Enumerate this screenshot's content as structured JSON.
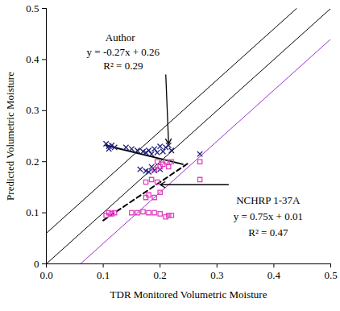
{
  "chart_data": {
    "type": "scatter",
    "x_label": "TDR Monitored Volumetric Moisture",
    "y_label": "Predicted Volumetric Moisture",
    "xlim": [
      0,
      0.5
    ],
    "ylim": [
      0,
      0.5
    ],
    "xticks": [
      {
        "value": 0,
        "label": "0.0"
      },
      0.1,
      0.2,
      0.3,
      0.4,
      0.5
    ],
    "yticks": [
      0,
      0.1,
      0.2,
      0.3,
      0.4,
      0.5
    ],
    "grid": false,
    "series": [
      {
        "name": "Author",
        "type": "scatter",
        "marker": "x",
        "color": "#1f1f7a",
        "x": [
          0.105,
          0.11,
          0.115,
          0.12,
          0.11,
          0.14,
          0.15,
          0.16,
          0.17,
          0.175,
          0.18,
          0.185,
          0.19,
          0.2,
          0.205,
          0.21,
          0.215,
          0.22,
          0.195,
          0.165,
          0.175,
          0.18,
          0.19,
          0.2,
          0.185,
          0.27
        ],
        "values": [
          0.235,
          0.23,
          0.232,
          0.228,
          0.225,
          0.228,
          0.225,
          0.222,
          0.22,
          0.218,
          0.222,
          0.215,
          0.225,
          0.23,
          0.22,
          0.228,
          0.232,
          0.222,
          0.218,
          0.185,
          0.182,
          0.18,
          0.183,
          0.185,
          0.19,
          0.215
        ]
      },
      {
        "name": "NCHRP 1-37A",
        "type": "scatter",
        "marker": "square",
        "color": "#e040c0",
        "x": [
          0.105,
          0.11,
          0.115,
          0.12,
          0.15,
          0.16,
          0.17,
          0.18,
          0.19,
          0.2,
          0.21,
          0.215,
          0.22,
          0.175,
          0.18,
          0.19,
          0.2,
          0.175,
          0.185,
          0.195,
          0.19,
          0.2,
          0.205,
          0.21,
          0.215,
          0.22,
          0.195,
          0.27,
          0.27
        ],
        "values": [
          0.095,
          0.1,
          0.098,
          0.1,
          0.1,
          0.1,
          0.102,
          0.1,
          0.1,
          0.098,
          0.092,
          0.095,
          0.095,
          0.13,
          0.135,
          0.13,
          0.14,
          0.16,
          0.165,
          0.16,
          0.185,
          0.19,
          0.195,
          0.2,
          0.19,
          0.2,
          0.2,
          0.165,
          0.2
        ]
      },
      {
        "type": "line",
        "line_style": "solid",
        "color": "#000000",
        "x": [
          0,
          0.44
        ],
        "values": [
          0.06,
          0.5
        ]
      },
      {
        "type": "line",
        "line_style": "solid",
        "color": "#000000",
        "x": [
          0,
          0.5
        ],
        "values": [
          0,
          0.5
        ]
      },
      {
        "type": "line",
        "line_style": "solid",
        "color": "#9933cc",
        "x": [
          0.06,
          0.5
        ],
        "values": [
          0,
          0.44
        ]
      },
      {
        "type": "line",
        "line_style": "solid",
        "color": "#000000",
        "x": [
          0.105,
          0.24
        ],
        "values": [
          0.232,
          0.195
        ]
      },
      {
        "type": "line",
        "line_style": "dashed",
        "color": "#000000",
        "x": [
          0.1,
          0.25
        ],
        "values": [
          0.085,
          0.1975
        ]
      }
    ],
    "annotations": [
      {
        "text": "Author",
        "x": 0.13,
        "y": 0.442
      },
      {
        "text": "y = -0.27x + 0.26",
        "x": 0.135,
        "y": 0.415
      },
      {
        "text": "R² = 0.29",
        "x": 0.135,
        "y": 0.387
      },
      {
        "text": "NCHRP 1-37A",
        "x": 0.39,
        "y": 0.124
      },
      {
        "text": "y = 0.75x + 0.01",
        "x": 0.39,
        "y": 0.092
      },
      {
        "text": "R² = 0.47",
        "x": 0.39,
        "y": 0.061
      }
    ],
    "arrows": [
      {
        "x1": 0.21,
        "y1": 0.37,
        "x2": 0.215,
        "y2": 0.235
      },
      {
        "x1": 0.32,
        "y1": 0.155,
        "x2": 0.2,
        "y2": 0.155
      }
    ]
  }
}
